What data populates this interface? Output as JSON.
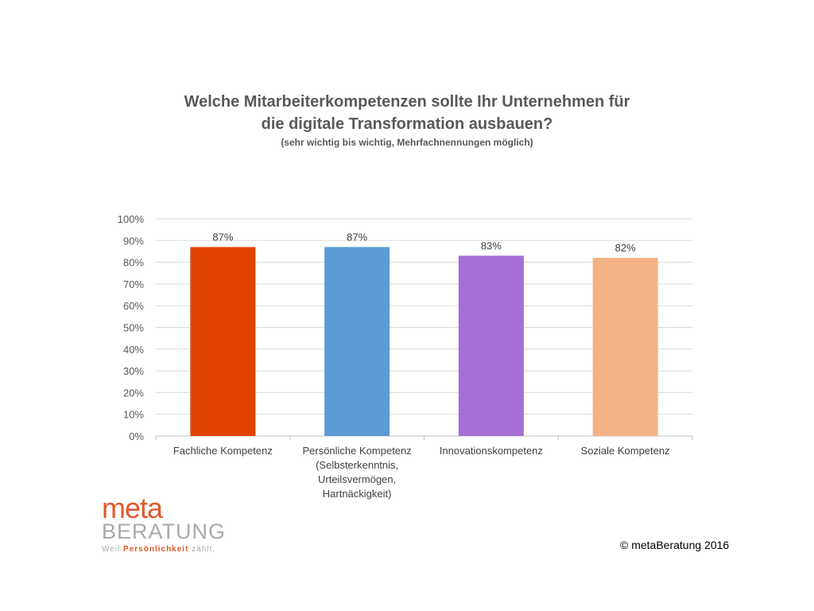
{
  "chart_data": {
    "type": "bar",
    "title": "Welche Mitarbeiterkompetenzen sollte Ihr Unternehmen für",
    "title_line2": "die digitale Transformation ausbauen?",
    "subtitle": "(sehr wichtig bis wichtig, Mehrfachnennungen möglich)",
    "categories": [
      [
        "Fachliche Kompetenz"
      ],
      [
        "Persönliche Kompetenz",
        "(Selbsterkenntnis,",
        "Urteilsvermögen,",
        "Hartnäckigkeit)"
      ],
      [
        "Innovationskompetenz"
      ],
      [
        "Soziale Kompetenz"
      ]
    ],
    "values": [
      87,
      87,
      83,
      82
    ],
    "data_labels": [
      "87%",
      "87%",
      "83%",
      "82%"
    ],
    "colors": [
      "#e04300",
      "#5b9bd5",
      "#a56fd6",
      "#f4b183"
    ],
    "ylim": [
      0,
      100
    ],
    "yticks": [
      "0%",
      "10%",
      "20%",
      "30%",
      "40%",
      "50%",
      "60%",
      "70%",
      "80%",
      "90%",
      "100%"
    ],
    "grid": true,
    "xlabel": "",
    "ylabel": ""
  },
  "footer": {
    "copyright": "© metaBeratung 2016"
  },
  "logo": {
    "meta": "meta",
    "beratung": "BERATUNG",
    "tagline_pre": "Weil ",
    "tagline_mid": "Persönlichkeit",
    "tagline_post": " zählt."
  }
}
